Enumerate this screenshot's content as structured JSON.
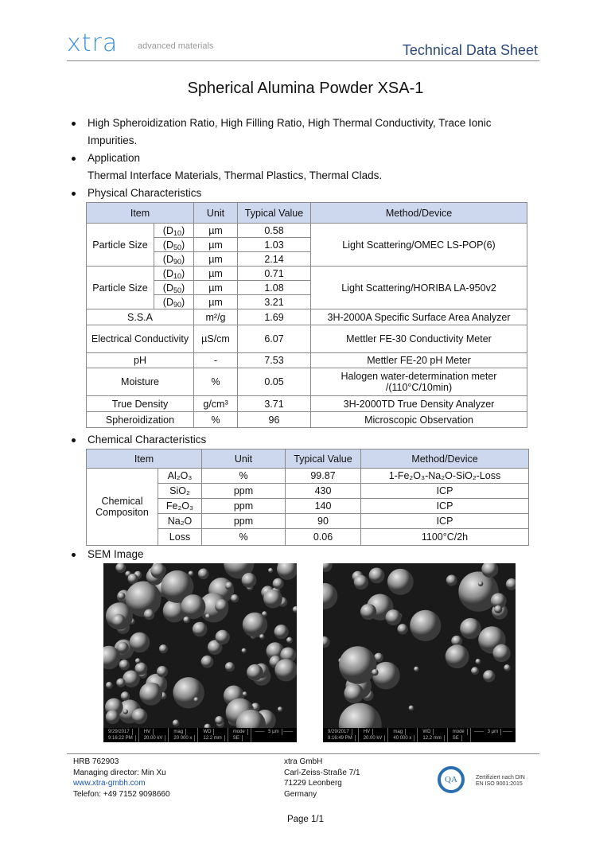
{
  "header": {
    "logo": "xtra",
    "tagline": "advanced materials",
    "doc_type": "Technical Data Sheet"
  },
  "title": "Spherical Alumina Powder XSA-1",
  "bullets": {
    "features": "High Spheroidization Ratio, High Filling Ratio, High Thermal Conductivity, Trace Ionic Impurities.",
    "application_heading": "Application",
    "application_text": "Thermal Interface Materials, Thermal Plastics, Thermal Clads.",
    "physical_heading": "Physical Characteristics",
    "chemical_heading": "Chemical Characteristics",
    "sem_heading": "SEM Image"
  },
  "physical": {
    "headers": [
      "Item",
      "Unit",
      "Typical Value",
      "Method/Device"
    ],
    "particle_label": "Particle Size",
    "group1": {
      "rows": [
        [
          "D",
          "10",
          "µm",
          "0.58"
        ],
        [
          "D",
          "50",
          "µm",
          "1.03"
        ],
        [
          "D",
          "90",
          "µm",
          "2.14"
        ]
      ],
      "method": "Light Scattering/OMEC LS-POP(6)"
    },
    "group2": {
      "rows": [
        [
          "D",
          "10",
          "µm",
          "0.71"
        ],
        [
          "D",
          "50",
          "µm",
          "1.08"
        ],
        [
          "D",
          "90",
          "µm",
          "3.21"
        ]
      ],
      "method": "Light Scattering/HORIBA LA-950v2"
    },
    "rows": [
      [
        "S.S.A",
        "m²/g",
        "1.69",
        "3H-2000A Specific Surface Area Analyzer"
      ],
      [
        "Electrical Conductivity",
        "µS/cm",
        "6.07",
        "Mettler FE-30 Conductivity Meter"
      ],
      [
        "pH",
        "-",
        "7.53",
        "Mettler FE-20 pH Meter"
      ],
      [
        "Moisture",
        "%",
        "0.05",
        "Halogen water-determination meter /(110°C/10min)"
      ],
      [
        "True Density",
        "g/cm³",
        "3.71",
        "3H-2000TD True Density Analyzer"
      ],
      [
        "Spheroidization",
        "%",
        "96",
        "Microscopic Observation"
      ]
    ]
  },
  "chemical": {
    "headers": [
      "Item",
      "Unit",
      "Typical Value",
      "Method/Device"
    ],
    "group_label": "Chemical Compositon",
    "rows": [
      [
        "Al₂O₃",
        "%",
        "99.87",
        "1-Fe₂O₃-Na₂O-SiO₂-Loss"
      ],
      [
        "SiO₂",
        "ppm",
        "430",
        "ICP"
      ],
      [
        "Fe₂O₃",
        "ppm",
        "140",
        "ICP"
      ],
      [
        "Na₂O",
        "ppm",
        "90",
        "ICP"
      ],
      [
        "Loss",
        "%",
        "0.06",
        "1100°C/2h"
      ]
    ]
  },
  "sem": [
    {
      "date": "9/29/2017",
      "time": "9:16:22 PM",
      "hv": "20.00 kV",
      "mag": "20 000 x",
      "wd": "12.2 mm",
      "mode": "SE",
      "scale": "5 µm"
    },
    {
      "date": "9/29/2017",
      "time": "9:16:49 PM",
      "hv": "20.00 kV",
      "mag": "40 000 x",
      "wd": "12.2 mm",
      "mode": "SE",
      "scale": "3 µm"
    }
  ],
  "sem_labels": {
    "hv": "HV",
    "mag": "mag",
    "wd": "WD",
    "mode": "mode"
  },
  "footer": {
    "hrb": "HRB 762903",
    "director": "Managing director: Min Xu",
    "website": "www.xtra-gmbh.com",
    "phone": "Telefon: +49 7152 9098660",
    "company": "xtra GmbH",
    "street": "Carl-Zeiss-Straße 7/1",
    "city": "71229 Leonberg",
    "country": "Germany",
    "cert_logo": "QA",
    "cert_text1": "Zertifiziert nach DIN",
    "cert_text2": "EN ISO 9001:2015",
    "page": "Page 1/1"
  }
}
